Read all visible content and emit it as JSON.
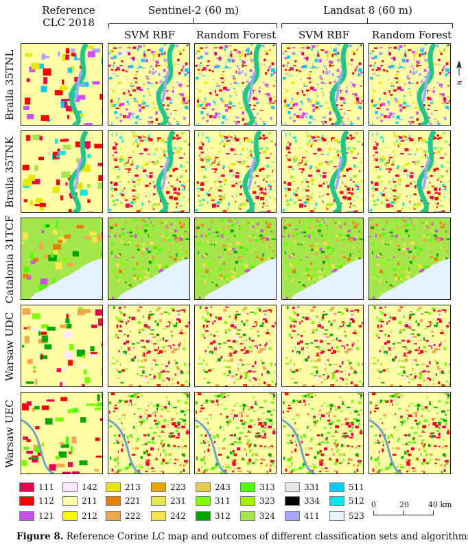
{
  "header": {
    "reference": "Reference CLC 2018",
    "reference_line1": "Reference",
    "reference_line2": "CLC 2018",
    "group1": "Sentinel-2 (60 m)",
    "group2": "Landsat 8 (60 m)",
    "columns": [
      "SVM RBF",
      "Random Forest",
      "SVM RBF",
      "Random Forest"
    ]
  },
  "rows": [
    "Braila 35TNL",
    "Braila 35TNK",
    "Catalonia 31TCF",
    "Warsaw UDC",
    "Warsaw UEC"
  ],
  "legend": [
    {
      "code": "111",
      "color": "#e6004d"
    },
    {
      "code": "112",
      "color": "#ff0000"
    },
    {
      "code": "121",
      "color": "#cc4df2"
    },
    {
      "code": "142",
      "color": "#ffe6ff"
    },
    {
      "code": "211",
      "color": "#ffffa8"
    },
    {
      "code": "212",
      "color": "#ffff00"
    },
    {
      "code": "213",
      "color": "#e6e600"
    },
    {
      "code": "221",
      "color": "#e68000"
    },
    {
      "code": "222",
      "color": "#f2a64d"
    },
    {
      "code": "223",
      "color": "#e6a600"
    },
    {
      "code": "231",
      "color": "#e6e64d"
    },
    {
      "code": "242",
      "color": "#ffe64d"
    },
    {
      "code": "243",
      "color": "#e6cc4d"
    },
    {
      "code": "311",
      "color": "#80ff00"
    },
    {
      "code": "312",
      "color": "#00a600"
    },
    {
      "code": "313",
      "color": "#4dff00"
    },
    {
      "code": "323",
      "color": "#a6f200"
    },
    {
      "code": "324",
      "color": "#a6e64d"
    },
    {
      "code": "331",
      "color": "#e6e6e6"
    },
    {
      "code": "334",
      "color": "#000000"
    },
    {
      "code": "411",
      "color": "#a6a6ff"
    },
    {
      "code": "511",
      "color": "#00ccf2"
    },
    {
      "code": "512",
      "color": "#00e6e6"
    },
    {
      "code": "523",
      "color": "#e6f2ff"
    }
  ],
  "scale": {
    "labels": [
      "0",
      "20",
      "40 km"
    ]
  },
  "north_label": "N",
  "caption": {
    "label": "Figure 8.",
    "text": " Reference Corine LC map and outcomes of different classification sets and algorithms."
  }
}
